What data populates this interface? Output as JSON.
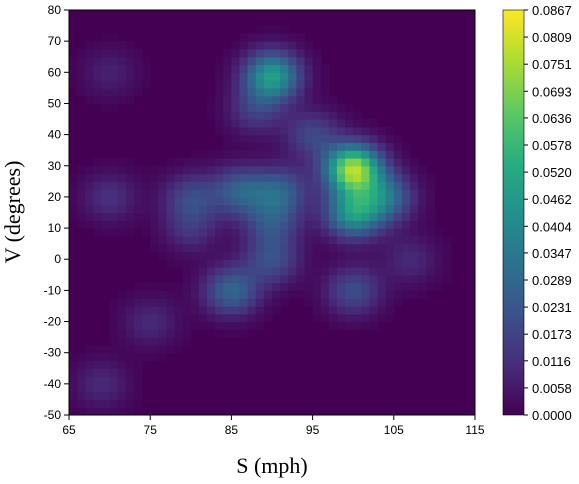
{
  "chart_data": {
    "type": "heatmap",
    "title": "",
    "xlabel": "S (mph)",
    "ylabel": "V (degrees)",
    "xlim": [
      65,
      115
    ],
    "ylim": [
      -50,
      80
    ],
    "x_ticks": [
      "65",
      "75",
      "85",
      "95",
      "105",
      "115"
    ],
    "y_ticks": [
      "80",
      "70",
      "60",
      "50",
      "40",
      "30",
      "20",
      "10",
      "0",
      "-10",
      "-20",
      "-30",
      "-40",
      "-50"
    ],
    "colorscale": "viridis",
    "colorbar_range": [
      0.0,
      0.0867
    ],
    "colorbar_ticks": [
      "0.0867",
      "0.0809",
      "0.0751",
      "0.0693",
      "0.0636",
      "0.0578",
      "0.0520",
      "0.0462",
      "0.0404",
      "0.0347",
      "0.0289",
      "0.0231",
      "0.0173",
      "0.0116",
      "0.0058",
      "0.0000"
    ],
    "density_peaks": [
      {
        "x": 100,
        "y": 29,
        "value": 0.075
      },
      {
        "x": 90,
        "y": 59,
        "value": 0.048
      },
      {
        "x": 100,
        "y": 15,
        "value": 0.045
      },
      {
        "x": 104,
        "y": 20,
        "value": 0.03
      },
      {
        "x": 86,
        "y": 22,
        "value": 0.025
      },
      {
        "x": 91,
        "y": 22,
        "value": 0.025
      },
      {
        "x": 80,
        "y": 20,
        "value": 0.018
      },
      {
        "x": 90,
        "y": 12,
        "value": 0.02
      },
      {
        "x": 85,
        "y": -10,
        "value": 0.028
      },
      {
        "x": 90,
        "y": 0,
        "value": 0.02
      },
      {
        "x": 100,
        "y": -10,
        "value": 0.02
      },
      {
        "x": 95,
        "y": 40,
        "value": 0.018
      },
      {
        "x": 88,
        "y": 48,
        "value": 0.015
      },
      {
        "x": 80,
        "y": 10,
        "value": 0.012
      },
      {
        "x": 70,
        "y": 20,
        "value": 0.012
      },
      {
        "x": 69,
        "y": -40,
        "value": 0.01
      },
      {
        "x": 75,
        "y": -20,
        "value": 0.01
      },
      {
        "x": 70,
        "y": 60,
        "value": 0.008
      },
      {
        "x": 107,
        "y": 0,
        "value": 0.01
      }
    ]
  }
}
